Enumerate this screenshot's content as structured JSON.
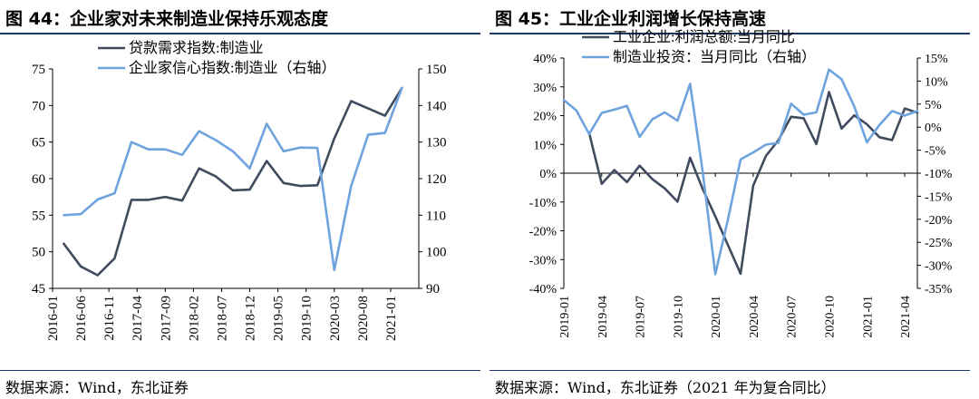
{
  "charts": [
    {
      "title": "图  44：企业家对未来制造业保持乐观态度",
      "source": "数据来源：Wind，东北证券",
      "chart_data": {
        "type": "line",
        "title": "图  44：企业家对未来制造业保持乐观态度",
        "xlabel": "",
        "ylabel": "",
        "x_tick_labels": [
          "2016-01",
          "2016-06",
          "2016-11",
          "2017-04",
          "2017-09",
          "2018-02",
          "2018-07",
          "2018-12",
          "2019-05",
          "2019-10",
          "2020-03",
          "2020-08",
          "2021-01"
        ],
        "x_tick_index": [
          0,
          5,
          10,
          15,
          20,
          25,
          30,
          35,
          40,
          45,
          50,
          55,
          60
        ],
        "x_max_index": 65,
        "left_axis": {
          "min": 45,
          "max": 75,
          "step": 5,
          "ticks": [
            "45",
            "50",
            "55",
            "60",
            "65",
            "70",
            "75"
          ]
        },
        "right_axis": {
          "min": 90,
          "max": 150,
          "step": 10,
          "ticks": [
            "90",
            "100",
            "110",
            "120",
            "130",
            "140",
            "150"
          ]
        },
        "legend_position": "top-left",
        "grid": false,
        "series": [
          {
            "name": "贷款需求指数:制造业",
            "axis": "left",
            "color": "#404c5e",
            "x_index": [
              2,
              5,
              8,
              11,
              14,
              17,
              20,
              23,
              26,
              29,
              32,
              35,
              38,
              41,
              44,
              47,
              50,
              53,
              56,
              59,
              62
            ],
            "values": [
              51.1,
              48.0,
              46.8,
              49.1,
              57.1,
              57.1,
              57.5,
              57.0,
              61.4,
              60.3,
              58.4,
              58.5,
              62.4,
              59.4,
              59.0,
              59.1,
              65.5,
              70.6,
              69.6,
              68.6,
              72.4
            ]
          },
          {
            "name": "企业家信心指数:制造业（右轴）",
            "axis": "right",
            "color": "#6fa3dd",
            "x_index": [
              2,
              5,
              8,
              11,
              14,
              17,
              20,
              23,
              26,
              29,
              32,
              35,
              38,
              41,
              44,
              47,
              50,
              53,
              56,
              59,
              62
            ],
            "values": [
              110.0,
              110.3,
              114.3,
              116.0,
              130.0,
              128.0,
              128.0,
              126.5,
              133.0,
              130.5,
              127.5,
              122.8,
              135.0,
              127.5,
              128.5,
              128.4,
              95.0,
              118.0,
              132.0,
              132.5,
              144.8
            ]
          }
        ]
      }
    },
    {
      "title": "图  45：工业企业利润增长保持高速",
      "source": "数据来源：Wind，东北证券（2021 年为复合同比）",
      "chart_data": {
        "type": "line",
        "title": "图  45：工业企业利润增长保持高速",
        "xlabel": "",
        "ylabel": "",
        "x_tick_labels": [
          "2019-01",
          "2019-04",
          "2019-07",
          "2019-10",
          "2020-01",
          "2020-04",
          "2020-07",
          "2020-10",
          "2021-01",
          "2021-04"
        ],
        "x_tick_index": [
          0,
          3,
          6,
          9,
          12,
          15,
          18,
          21,
          24,
          27
        ],
        "x_max_index": 28,
        "left_axis": {
          "min": -40,
          "max": 40,
          "step": 10,
          "ticks": [
            "-40%",
            "-30%",
            "-20%",
            "-10%",
            "0%",
            "10%",
            "20%",
            "30%",
            "40%"
          ]
        },
        "right_axis": {
          "min": -35,
          "max": 15,
          "step": 5,
          "ticks": [
            "-35%",
            "-30%",
            "-25%",
            "-20%",
            "-15%",
            "-10%",
            "-5%",
            "0%",
            "5%",
            "10%",
            "15%"
          ]
        },
        "legend_position": "top-left",
        "grid": false,
        "series": [
          {
            "name": "工业企业:利润总额:当月同比",
            "axis": "left",
            "color": "#404c5e",
            "x_index": [
              2,
              3,
              4,
              5,
              6,
              7,
              8,
              9,
              10,
              11,
              12,
              13,
              14,
              15,
              16,
              17,
              18,
              19,
              20,
              21,
              22,
              23,
              24,
              25,
              26,
              27,
              28
            ],
            "values": [
              14,
              -3.7,
              1.1,
              -3.1,
              2.6,
              -2,
              -5.3,
              -9.9,
              5.4,
              -5.5,
              -15,
              -25,
              -34.9,
              -4.3,
              6,
              11.5,
              19.6,
              19.1,
              10.1,
              28.2,
              15.5,
              20.1,
              17,
              12.5,
              11.5,
              22.5,
              21
            ],
            "missing_note": ""
          },
          {
            "name": "制造业投资：当月同比（右轴）",
            "axis": "right",
            "color": "#6fa3dd",
            "x_index": [
              0,
              1,
              2,
              3,
              4,
              5,
              6,
              7,
              8,
              9,
              10,
              11,
              12,
              13,
              14,
              15,
              16,
              17,
              18,
              19,
              20,
              21,
              22,
              23,
              24,
              25,
              26,
              27,
              28
            ],
            "values": [
              5.9,
              3.6,
              -1.5,
              3.1,
              3.8,
              4.6,
              -2.1,
              1.7,
              3.2,
              1.4,
              9.4,
              -9.7,
              -31.9,
              -20,
              -7,
              -5.5,
              -3.8,
              -3.4,
              5.1,
              2.7,
              3.2,
              12.5,
              10.4,
              4.5,
              -3.3,
              0.5,
              3.5,
              2.5,
              3.5
            ]
          }
        ]
      }
    }
  ]
}
